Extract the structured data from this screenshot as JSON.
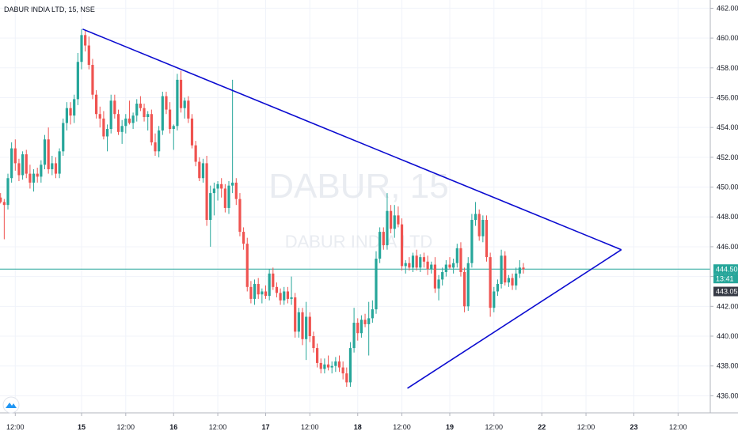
{
  "header": {
    "title": "DABUR INDIA LTD, 15, NSE"
  },
  "watermark": {
    "symbol": "DABUR, 15",
    "name": "DABUR INDIA LTD"
  },
  "colors": {
    "up": "#26a69a",
    "down": "#ef5350",
    "trendline": "#0b0bd0",
    "price_line": "#26a69a",
    "countdown_bg": "#26a69a",
    "prev_close_bg": "#363a45",
    "grid": "#f0f3fa",
    "axis": "#b2b5be",
    "logo": "#2196f3"
  },
  "logo": {
    "icon": "tradingview-logo-icon"
  },
  "chart_data": {
    "type": "candlestick",
    "ylim": [
      434.8,
      462.5
    ],
    "y_ticks": [
      436,
      438,
      440,
      442,
      444,
      446,
      448,
      450,
      452,
      454,
      456,
      458,
      460,
      462
    ],
    "y_tick_labels": [
      "436.00",
      "438.00",
      "440.00",
      "442.00",
      "444.00",
      "446.00",
      "448.00",
      "450.00",
      "452.00",
      "454.00",
      "456.00",
      "458.00",
      "460.00",
      "462.00"
    ],
    "x_ticks": [
      {
        "label": "12:00",
        "i": -18,
        "bold": false
      },
      {
        "label": "15",
        "i": 0,
        "bold": true
      },
      {
        "label": "12:00",
        "i": 12,
        "bold": false
      },
      {
        "label": "16",
        "i": 25,
        "bold": true
      },
      {
        "label": "12:00",
        "i": 37,
        "bold": false
      },
      {
        "label": "17",
        "i": 50,
        "bold": true
      },
      {
        "label": "12:00",
        "i": 62,
        "bold": false
      },
      {
        "label": "18",
        "i": 75,
        "bold": true
      },
      {
        "label": "12:00",
        "i": 87,
        "bold": false
      },
      {
        "label": "19",
        "i": 100,
        "bold": true
      },
      {
        "label": "12:00",
        "i": 112,
        "bold": false
      },
      {
        "label": "22",
        "i": 125,
        "bold": true
      },
      {
        "label": "12:00",
        "i": 137,
        "bold": false
      },
      {
        "label": "23",
        "i": 150,
        "bold": true
      },
      {
        "label": "12:00",
        "i": 162,
        "bold": false
      }
    ],
    "candle_start_index": -22,
    "candles": [
      [
        449.3,
        449.6,
        448.9,
        449.0
      ],
      [
        449.0,
        449.2,
        446.5,
        448.8
      ],
      [
        448.8,
        450.9,
        448.5,
        450.6
      ],
      [
        450.6,
        453.0,
        450.3,
        452.6
      ],
      [
        452.6,
        453.2,
        451.1,
        451.6
      ],
      [
        451.6,
        451.9,
        450.4,
        450.8
      ],
      [
        450.8,
        452.4,
        450.5,
        452.2
      ],
      [
        452.2,
        452.5,
        450.6,
        450.9
      ],
      [
        450.9,
        451.5,
        449.9,
        450.3
      ],
      [
        450.3,
        451.2,
        449.7,
        450.9
      ],
      [
        450.9,
        451.3,
        450.3,
        450.7
      ],
      [
        450.7,
        451.8,
        450.3,
        451.5
      ],
      [
        451.5,
        453.5,
        451.2,
        453.2
      ],
      [
        453.2,
        454.0,
        450.9,
        451.2
      ],
      [
        451.2,
        452.1,
        450.8,
        451.6
      ],
      [
        451.6,
        452.0,
        450.6,
        450.9
      ],
      [
        450.9,
        452.6,
        450.6,
        452.4
      ],
      [
        452.4,
        454.6,
        452.1,
        454.3
      ],
      [
        454.3,
        455.7,
        453.8,
        455.3
      ],
      [
        455.3,
        455.7,
        454.2,
        454.8
      ],
      [
        454.8,
        456.2,
        454.3,
        455.9
      ],
      [
        455.9,
        459.0,
        455.5,
        458.4
      ],
      [
        458.4,
        460.6,
        457.9,
        460.2
      ],
      [
        460.2,
        460.5,
        459.1,
        459.5
      ],
      [
        459.5,
        460.1,
        457.9,
        458.2
      ],
      [
        458.2,
        458.6,
        455.9,
        456.2
      ],
      [
        456.2,
        456.5,
        454.6,
        454.9
      ],
      [
        454.9,
        455.4,
        454.0,
        454.6
      ],
      [
        454.6,
        455.1,
        453.2,
        453.4
      ],
      [
        453.4,
        454.2,
        452.4,
        453.9
      ],
      [
        453.9,
        456.2,
        453.6,
        455.8
      ],
      [
        455.8,
        456.2,
        454.6,
        454.9
      ],
      [
        454.9,
        455.2,
        453.5,
        453.7
      ],
      [
        453.7,
        454.5,
        452.9,
        454.1
      ],
      [
        454.1,
        454.9,
        453.6,
        454.6
      ],
      [
        454.6,
        455.8,
        454.2,
        454.3
      ],
      [
        454.3,
        455.0,
        453.9,
        454.8
      ],
      [
        454.8,
        455.9,
        454.4,
        455.6
      ],
      [
        455.6,
        456.1,
        455.1,
        455.3
      ],
      [
        455.3,
        455.6,
        454.4,
        454.7
      ],
      [
        454.7,
        455.1,
        453.8,
        454.9
      ],
      [
        454.9,
        455.2,
        452.8,
        453.0
      ],
      [
        453.0,
        453.6,
        452.1,
        452.4
      ],
      [
        452.4,
        454.1,
        452.0,
        453.8
      ],
      [
        453.8,
        456.4,
        453.5,
        456.1
      ],
      [
        456.1,
        456.4,
        454.9,
        455.2
      ],
      [
        455.2,
        455.7,
        453.6,
        453.9
      ],
      [
        453.9,
        454.2,
        452.5,
        454.1
      ],
      [
        454.1,
        457.6,
        453.8,
        457.2
      ],
      [
        457.2,
        457.8,
        455.0,
        455.3
      ],
      [
        455.3,
        456.0,
        454.6,
        455.8
      ],
      [
        455.8,
        456.1,
        454.3,
        454.6
      ],
      [
        454.6,
        454.9,
        452.6,
        452.8
      ],
      [
        452.8,
        453.1,
        451.4,
        451.7
      ],
      [
        451.7,
        452.0,
        450.4,
        450.6
      ],
      [
        450.6,
        451.9,
        450.3,
        451.6
      ],
      [
        451.6,
        452.1,
        447.4,
        447.8
      ],
      [
        447.8,
        450.1,
        446.0,
        449.6
      ],
      [
        449.6,
        450.3,
        448.1,
        449.9
      ],
      [
        449.9,
        450.4,
        449.1,
        450.2
      ],
      [
        450.2,
        450.6,
        449.3,
        449.9
      ],
      [
        449.9,
        450.2,
        448.3,
        448.6
      ],
      [
        448.6,
        450.4,
        448.2,
        450.1
      ],
      [
        450.1,
        457.2,
        449.6,
        450.3
      ],
      [
        450.3,
        450.6,
        448.8,
        449.2
      ],
      [
        449.2,
        449.6,
        446.7,
        447.0
      ],
      [
        447.0,
        447.3,
        445.8,
        446.2
      ],
      [
        446.2,
        446.6,
        443.0,
        443.3
      ],
      [
        443.3,
        443.7,
        442.2,
        442.5
      ],
      [
        442.5,
        443.8,
        442.1,
        443.5
      ],
      [
        443.5,
        443.9,
        442.5,
        442.8
      ],
      [
        442.8,
        443.2,
        442.2,
        443.0
      ],
      [
        443.0,
        443.4,
        442.5,
        442.7
      ],
      [
        442.7,
        444.5,
        442.4,
        444.2
      ],
      [
        444.2,
        444.6,
        443.1,
        443.3
      ],
      [
        443.3,
        443.6,
        442.6,
        442.9
      ],
      [
        442.9,
        443.2,
        442.1,
        442.4
      ],
      [
        442.4,
        443.3,
        442.1,
        443.0
      ],
      [
        443.0,
        443.3,
        442.2,
        442.5
      ],
      [
        442.5,
        444.0,
        442.1,
        442.6
      ],
      [
        442.6,
        442.9,
        439.9,
        440.3
      ],
      [
        440.3,
        441.9,
        439.9,
        441.6
      ],
      [
        441.6,
        441.9,
        439.4,
        439.8
      ],
      [
        439.8,
        442.3,
        438.4,
        441.3
      ],
      [
        441.3,
        441.6,
        439.6,
        440.0
      ],
      [
        440.0,
        440.3,
        438.9,
        439.2
      ],
      [
        439.2,
        439.5,
        437.9,
        438.2
      ],
      [
        438.2,
        438.5,
        437.5,
        437.8
      ],
      [
        437.8,
        438.5,
        437.5,
        438.1
      ],
      [
        438.1,
        438.7,
        437.7,
        437.9
      ],
      [
        437.9,
        438.3,
        437.5,
        438.0
      ],
      [
        438.0,
        438.6,
        437.6,
        438.3
      ],
      [
        438.3,
        438.7,
        437.6,
        437.9
      ],
      [
        437.9,
        438.3,
        437.1,
        437.5
      ],
      [
        437.5,
        437.9,
        436.6,
        436.9
      ],
      [
        436.9,
        439.6,
        436.6,
        439.2
      ],
      [
        439.2,
        441.9,
        438.9,
        440.9
      ],
      [
        440.9,
        441.2,
        439.7,
        440.2
      ],
      [
        440.2,
        441.4,
        439.9,
        441.1
      ],
      [
        441.1,
        441.5,
        440.6,
        440.8
      ],
      [
        440.8,
        442.3,
        438.7,
        441.2
      ],
      [
        441.2,
        442.4,
        440.9,
        441.8
      ],
      [
        441.8,
        445.7,
        441.5,
        445.2
      ],
      [
        445.2,
        447.3,
        444.9,
        447.0
      ],
      [
        447.0,
        447.3,
        445.8,
        446.1
      ],
      [
        446.1,
        449.6,
        445.8,
        448.4
      ],
      [
        448.4,
        448.8,
        446.9,
        447.2
      ],
      [
        447.2,
        448.8,
        446.6,
        448.1
      ],
      [
        448.1,
        448.7,
        447.3,
        447.5
      ],
      [
        447.5,
        447.9,
        444.4,
        444.7
      ],
      [
        444.7,
        445.1,
        444.2,
        444.9
      ],
      [
        444.9,
        445.3,
        444.4,
        444.6
      ],
      [
        444.6,
        445.6,
        444.3,
        445.4
      ],
      [
        445.4,
        445.8,
        444.4,
        444.6
      ],
      [
        444.6,
        445.5,
        444.3,
        445.3
      ],
      [
        445.3,
        445.6,
        444.6,
        445.0
      ],
      [
        445.0,
        445.4,
        444.1,
        444.5
      ],
      [
        444.5,
        445.0,
        444.2,
        444.8
      ],
      [
        444.8,
        445.3,
        442.9,
        443.2
      ],
      [
        443.2,
        444.1,
        442.4,
        443.8
      ],
      [
        443.8,
        444.6,
        443.4,
        444.3
      ],
      [
        444.3,
        445.1,
        444.0,
        444.8
      ],
      [
        444.8,
        445.3,
        444.5,
        444.6
      ],
      [
        444.6,
        445.2,
        444.2,
        444.9
      ],
      [
        444.9,
        446.2,
        444.6,
        445.9
      ],
      [
        445.9,
        446.3,
        444.0,
        444.3
      ],
      [
        444.3,
        444.6,
        441.6,
        442.0
      ],
      [
        442.0,
        445.3,
        441.7,
        444.9
      ],
      [
        444.9,
        448.2,
        444.6,
        447.8
      ],
      [
        447.8,
        449.0,
        447.4,
        448.2
      ],
      [
        448.2,
        448.5,
        446.4,
        446.7
      ],
      [
        446.7,
        448.1,
        446.3,
        447.8
      ],
      [
        447.8,
        448.1,
        445.0,
        445.3
      ],
      [
        445.3,
        445.6,
        441.3,
        441.9
      ],
      [
        441.9,
        443.3,
        441.6,
        443.0
      ],
      [
        443.0,
        443.8,
        442.7,
        443.5
      ],
      [
        443.5,
        445.8,
        443.2,
        445.4
      ],
      [
        445.4,
        445.7,
        443.4,
        443.6
      ],
      [
        443.6,
        444.1,
        443.3,
        443.9
      ],
      [
        443.9,
        444.2,
        443.1,
        443.4
      ],
      [
        443.4,
        444.6,
        443.1,
        444.2
      ],
      [
        444.2,
        445.1,
        443.9,
        444.6
      ],
      [
        444.6,
        444.9,
        444.2,
        444.5
      ]
    ],
    "trendlines": [
      {
        "from": {
          "i": 0.3,
          "y": 460.6
        },
        "to": {
          "i": 146.6,
          "y": 445.8
        }
      },
      {
        "from": {
          "i": 88.5,
          "y": 436.5
        },
        "to": {
          "i": 146.6,
          "y": 445.8
        }
      }
    ],
    "last_price": {
      "value": 444.5,
      "label": "444.50"
    },
    "countdown": {
      "label": "13:41"
    },
    "prev_close": {
      "value": 443.05,
      "label": "443.05"
    }
  }
}
